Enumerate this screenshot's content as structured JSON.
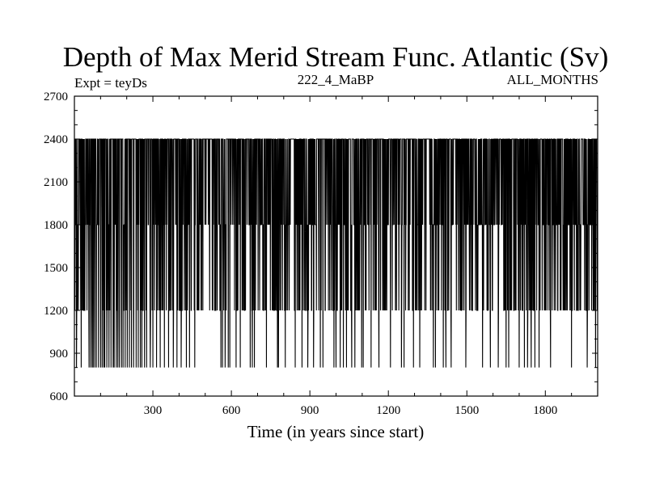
{
  "chart_data": {
    "type": "line",
    "title": "Depth of Max Merid Stream Func. Atlantic (Sv)",
    "annotations": {
      "left": "Expt = teyDs",
      "center": "222_4_MaBP",
      "right": "ALL_MONTHS"
    },
    "xlabel": "Time (in years since start)",
    "ylabel": "",
    "xlim": [
      0,
      2000
    ],
    "ylim": [
      600,
      2700
    ],
    "xticks": [
      300,
      600,
      900,
      1200,
      1500,
      1800
    ],
    "yticks": [
      600,
      900,
      1200,
      1500,
      1800,
      2100,
      2400,
      2700
    ],
    "levels": [
      800,
      1200,
      1800,
      2400
    ],
    "series": [
      {
        "description": "annual depth of max Atlantic meridional stream function; oscillates rapidly mostly between 1200 and 2400 with dips to 800",
        "x_start": 1,
        "x_end": 2000,
        "low_excursion_years": [
          8,
          26,
          56,
          62,
          68,
          72,
          78,
          84,
          92,
          100,
          106,
          112,
          116,
          124,
          132,
          140,
          148,
          152,
          160,
          166,
          172,
          180,
          186,
          194,
          202,
          210,
          218,
          226,
          236,
          244,
          252,
          258,
          268,
          276,
          290,
          300,
          314,
          328,
          344,
          360,
          378,
          392,
          408,
          428,
          440,
          460,
          560,
          566,
          576,
          588,
          594,
          618,
          634,
          672,
          680,
          688,
          734,
          776,
          780,
          806,
          844,
          870,
          892,
          914,
          940,
          950,
          992,
          1000,
          1016,
          1028,
          1040,
          1060,
          1072,
          1098,
          1104,
          1134,
          1164,
          1208,
          1250,
          1260,
          1296,
          1320,
          1372,
          1380,
          1410,
          1420,
          1440,
          1496,
          1560,
          1590,
          1620,
          1650,
          1660,
          1700,
          1720,
          1732,
          1746,
          1760,
          1776,
          1820,
          1900,
          1960,
          1992
        ]
      }
    ],
    "colors": {
      "line": "#000000",
      "background": "#ffffff"
    }
  }
}
